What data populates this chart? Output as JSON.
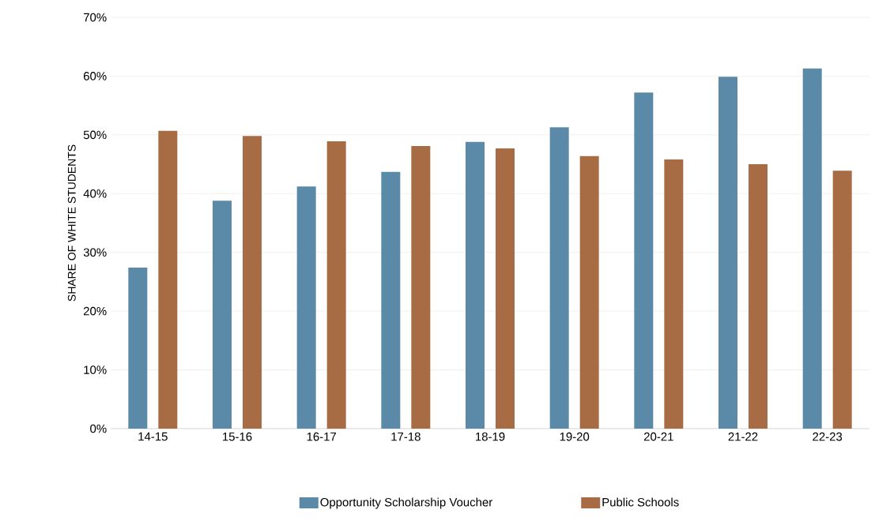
{
  "chart_data": {
    "type": "bar",
    "ylabel": "SHARE OF WHITE STUDENTS",
    "categories": [
      "14-15",
      "15-16",
      "16-17",
      "17-18",
      "18-19",
      "19-20",
      "20-21",
      "21-22",
      "22-23"
    ],
    "series": [
      {
        "name": "Opportunity Scholarship Voucher",
        "color": "#5b8aa8",
        "values": [
          27.4,
          38.8,
          41.2,
          43.7,
          48.8,
          51.3,
          57.2,
          59.9,
          61.3
        ]
      },
      {
        "name": "Public Schools",
        "color": "#a86c45",
        "values": [
          50.7,
          49.8,
          48.9,
          48.1,
          47.7,
          46.4,
          45.8,
          45.0,
          43.9
        ]
      }
    ],
    "ylim": [
      0,
      70
    ],
    "yticks": [
      {
        "value": 0,
        "label": "0%"
      },
      {
        "value": 10,
        "label": "10%"
      },
      {
        "value": 20,
        "label": "20%"
      },
      {
        "value": 30,
        "label": "30%"
      },
      {
        "value": 40,
        "label": "40%"
      },
      {
        "value": 50,
        "label": "50%"
      },
      {
        "value": 60,
        "label": "60%"
      },
      {
        "value": 70,
        "label": "70%"
      }
    ],
    "grid": "y",
    "legend": "bottom"
  }
}
